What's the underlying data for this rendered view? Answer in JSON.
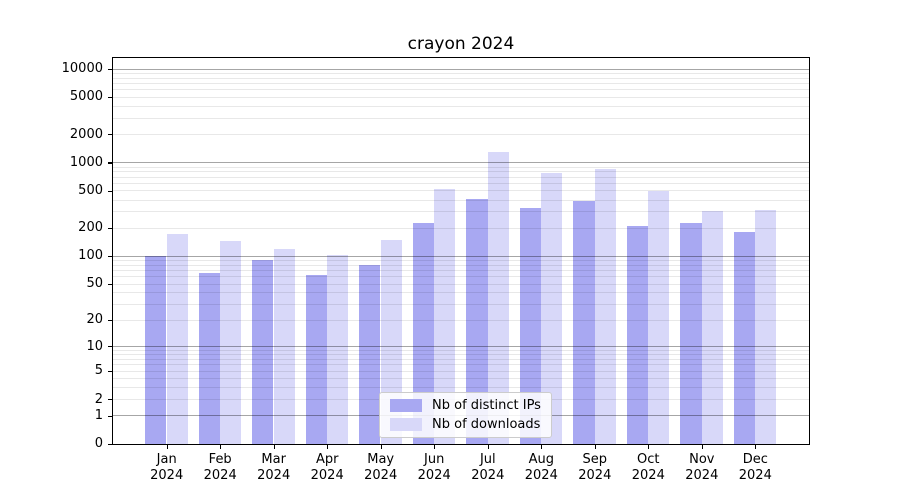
{
  "chart_data": {
    "type": "bar",
    "title": "crayon 2024",
    "categories": [
      "Jan 2024",
      "Feb 2024",
      "Mar 2024",
      "Apr 2024",
      "May 2024",
      "Jun 2024",
      "Jul 2024",
      "Aug 2024",
      "Sep 2024",
      "Oct 2024",
      "Nov 2024",
      "Dec 2024"
    ],
    "series": [
      {
        "name": "Nb of distinct IPs",
        "color": "#a8a8f2",
        "values": [
          100,
          65,
          90,
          62,
          80,
          228,
          410,
          327,
          390,
          210,
          224,
          180
        ]
      },
      {
        "name": "Nb of downloads",
        "color": "#d8d8f9",
        "values": [
          172,
          147,
          118,
          104,
          148,
          520,
          1300,
          770,
          860,
          500,
          305,
          310
        ]
      }
    ],
    "y_ticks": [
      0,
      1,
      2,
      5,
      10,
      20,
      50,
      100,
      200,
      500,
      1000,
      2000,
      5000,
      10000
    ],
    "y_scale": "log10(1+x)",
    "y_axis_top": 12940,
    "xlabel": "",
    "ylabel": "",
    "grid": true,
    "legend_position": "lower center",
    "colors": {
      "grid_major": "rgba(0,0,0,0.35)",
      "grid_minor": "rgba(0,0,0,0.09)",
      "spine": "#000000"
    }
  }
}
